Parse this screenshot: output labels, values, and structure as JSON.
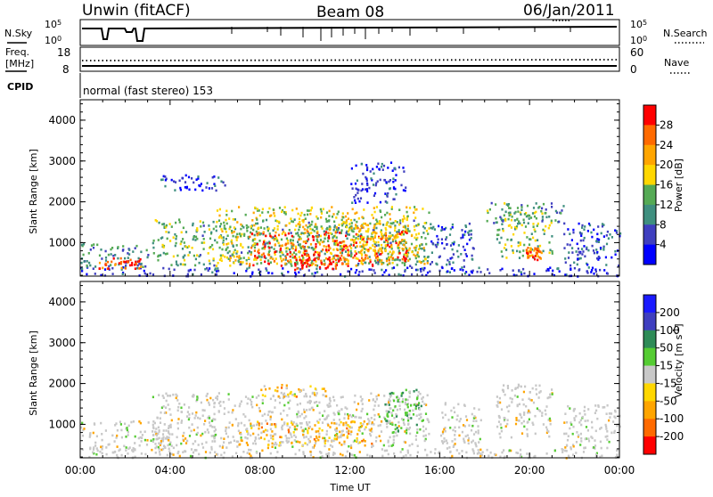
{
  "header": {
    "radar": "Unwin (fitACF)",
    "beam": "Beam 08",
    "date": "06/Jan/2011"
  },
  "noise_panel": {
    "left_label": "N.Sky",
    "left_ticks": [
      "10^5",
      "10^0"
    ],
    "right_label": "N.Search",
    "right_ticks": [
      "10^5",
      "10^0"
    ]
  },
  "freq_panel": {
    "left_label_1": "Freq.",
    "left_label_2": "[MHz]",
    "left_ticks": [
      "18",
      "8"
    ],
    "right_label": "Nave",
    "right_ticks": [
      "60",
      "0"
    ]
  },
  "cpid": {
    "label": "CPID",
    "text": "normal (fast stereo) 153"
  },
  "colors": {
    "power": [
      "#0000ff",
      "#3f3fbf",
      "#3f8f7f",
      "#55aa55",
      "#ffd700",
      "#ffa500",
      "#ff6a00",
      "#ff0000"
    ],
    "velocity": [
      "#ff0000",
      "#ff6a00",
      "#ffa500",
      "#ffd700",
      "#c8c8c8",
      "#55cc33",
      "#2e8b57",
      "#3f3fbf",
      "#1a1aff"
    ],
    "ground_scatter": "#c8c8c8"
  },
  "chart_data": [
    {
      "type": "heatmap",
      "title": "",
      "xlabel": "Time UT",
      "ylabel": "Slant Range [km]",
      "xlim_hours": [
        0,
        24
      ],
      "ylim": [
        180,
        4500
      ],
      "x_ticks": [
        "00:00",
        "04:00",
        "08:00",
        "12:00",
        "16:00",
        "20:00",
        "00:00"
      ],
      "y_ticks": [
        "1000",
        "2000",
        "3000",
        "4000"
      ],
      "colorbar": {
        "label": "Power [dB]",
        "range": [
          0,
          32
        ],
        "ticks": [
          "4",
          "8",
          "12",
          "16",
          "20",
          "24",
          "28"
        ]
      },
      "regions": [
        {
          "t0": 0.0,
          "t1": 24.0,
          "r0": 200,
          "r1": 420,
          "level": 0.15
        },
        {
          "t0": 0.0,
          "t1": 3.0,
          "r0": 400,
          "r1": 1000,
          "level": 0.3
        },
        {
          "t0": 0.8,
          "t1": 2.7,
          "r0": 380,
          "r1": 650,
          "level": 0.9
        },
        {
          "t0": 3.2,
          "t1": 15.5,
          "r0": 450,
          "r1": 1600,
          "level": 0.4
        },
        {
          "t0": 6.0,
          "t1": 15.5,
          "r0": 500,
          "r1": 1900,
          "level": 0.55
        },
        {
          "t0": 7.5,
          "t1": 14.5,
          "r0": 450,
          "r1": 1300,
          "level": 0.85
        },
        {
          "t0": 9.5,
          "t1": 11.5,
          "r0": 350,
          "r1": 800,
          "level": 0.95
        },
        {
          "t0": 12.0,
          "t1": 14.5,
          "r0": 800,
          "r1": 1500,
          "level": 0.6
        },
        {
          "t0": 15.5,
          "t1": 17.5,
          "r0": 350,
          "r1": 1500,
          "level": 0.2
        },
        {
          "t0": 18.5,
          "t1": 21.0,
          "r0": 650,
          "r1": 1800,
          "level": 0.45
        },
        {
          "t0": 19.8,
          "t1": 20.5,
          "r0": 600,
          "r1": 900,
          "level": 0.8
        },
        {
          "t0": 21.5,
          "t1": 24.0,
          "r0": 400,
          "r1": 1500,
          "level": 0.2
        },
        {
          "t0": 3.5,
          "t1": 6.5,
          "r0": 2300,
          "r1": 2700,
          "level": 0.12
        },
        {
          "t0": 12.0,
          "t1": 14.5,
          "r0": 2000,
          "r1": 3000,
          "level": 0.15
        },
        {
          "t0": 18.0,
          "t1": 21.5,
          "r0": 1500,
          "r1": 2000,
          "level": 0.35
        }
      ]
    },
    {
      "type": "heatmap",
      "title": "",
      "xlabel": "Time UT",
      "ylabel": "Slant Range [km]",
      "xlim_hours": [
        0,
        24
      ],
      "ylim": [
        180,
        4500
      ],
      "x_ticks": [
        "00:00",
        "04:00",
        "08:00",
        "12:00",
        "16:00",
        "20:00",
        "00:00"
      ],
      "y_ticks": [
        "1000",
        "2000",
        "3000",
        "4000"
      ],
      "colorbar": {
        "label": "Velocity [m s^-1]",
        "range": [
          -250,
          250
        ],
        "ticks": [
          "200",
          "100",
          "50",
          "15",
          "-15",
          "-50",
          "-100",
          "-200"
        ]
      },
      "regions": [
        {
          "t0": 0.0,
          "t1": 24.0,
          "r0": 200,
          "r1": 420,
          "level": 0.5
        },
        {
          "t0": 0.0,
          "t1": 4.0,
          "r0": 350,
          "r1": 1100,
          "level": 0.5
        },
        {
          "t0": 3.2,
          "t1": 15.5,
          "r0": 450,
          "r1": 1800,
          "level": 0.5
        },
        {
          "t0": 7.0,
          "t1": 13.0,
          "r0": 500,
          "r1": 1100,
          "level": 0.35
        },
        {
          "t0": 8.0,
          "t1": 11.0,
          "r0": 1700,
          "r1": 2000,
          "level": 0.3
        },
        {
          "t0": 13.5,
          "t1": 15.3,
          "r0": 800,
          "r1": 1900,
          "level": 0.7
        },
        {
          "t0": 16.0,
          "t1": 17.8,
          "r0": 350,
          "r1": 1600,
          "level": 0.5
        },
        {
          "t0": 18.5,
          "t1": 21.0,
          "r0": 700,
          "r1": 2000,
          "level": 0.5
        },
        {
          "t0": 21.5,
          "t1": 24.0,
          "r0": 400,
          "r1": 1500,
          "level": 0.5
        }
      ]
    }
  ]
}
